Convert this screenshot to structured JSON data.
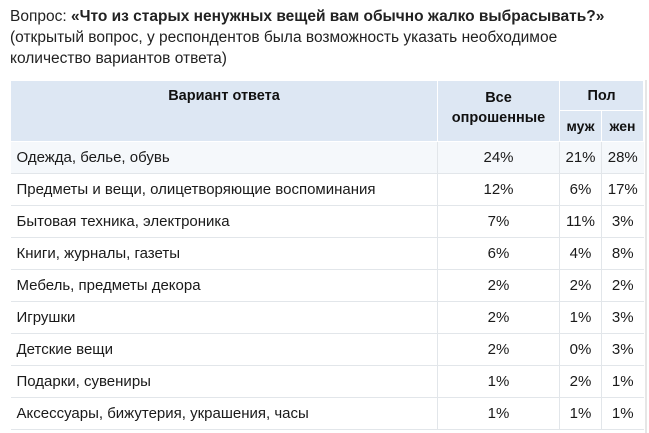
{
  "question": {
    "prefix": "Вопрос: ",
    "text": "«Что из старых ненужных вещей вам обычно жалко выбрасывать?»",
    "note": "(открытый вопрос, у респондентов была возможность указать необходимое количество вариантов ответа)"
  },
  "table": {
    "headers": {
      "option": "Вариант ответа",
      "all": "Все опрошенные",
      "sex": "Пол",
      "male": "муж",
      "female": "жен"
    },
    "rows": [
      {
        "option": "Одежда, белье, обувь",
        "all": "24%",
        "male": "21%",
        "female": "28%"
      },
      {
        "option": "Предметы и вещи, олицетворяющие воспоминания",
        "all": "12%",
        "male": "6%",
        "female": "17%"
      },
      {
        "option": "Бытовая техника, электроника",
        "all": "7%",
        "male": "11%",
        "female": "3%"
      },
      {
        "option": "Книги, журналы, газеты",
        "all": "6%",
        "male": "4%",
        "female": "8%"
      },
      {
        "option": "Мебель, предметы декора",
        "all": "2%",
        "male": "2%",
        "female": "2%"
      },
      {
        "option": "Игрушки",
        "all": "2%",
        "male": "1%",
        "female": "3%"
      },
      {
        "option": "Детские вещи",
        "all": "2%",
        "male": "0%",
        "female": "3%"
      },
      {
        "option": "Подарки, сувениры",
        "all": "1%",
        "male": "2%",
        "female": "1%"
      },
      {
        "option": "Аксессуары, бижутерия, украшения, часы",
        "all": "1%",
        "male": "1%",
        "female": "1%"
      }
    ]
  },
  "colors": {
    "header_bg": "#dde7f3",
    "first_row_bg": "#f5f8fb",
    "grid_line": "#e2e6ea"
  }
}
